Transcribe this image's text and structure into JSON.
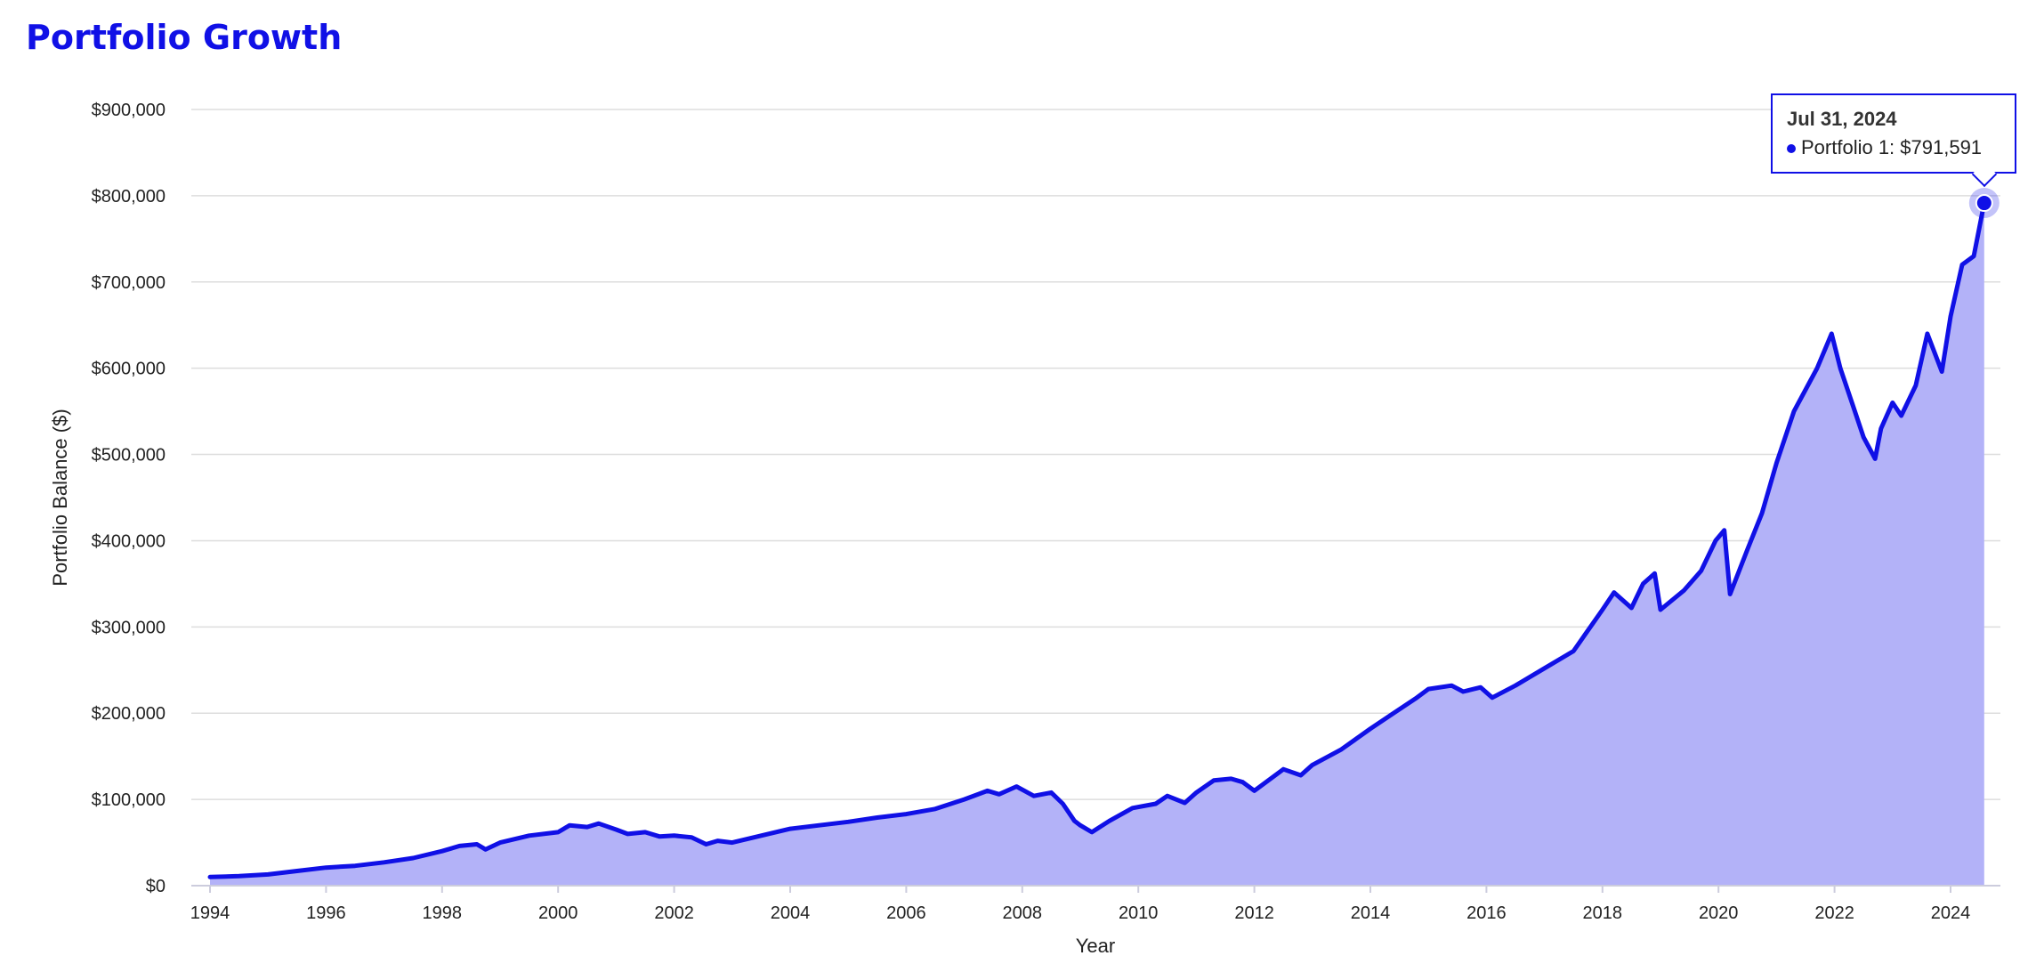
{
  "title": "Portfolio Growth",
  "colors": {
    "accent": "#1010e6",
    "fill": "#b3b2f8",
    "grid": "#dddddd"
  },
  "tooltip": {
    "date": "Jul 31, 2024",
    "series_label": "Portfolio 1: $791,591"
  },
  "chart_data": {
    "type": "area",
    "xlabel": "Year",
    "ylabel": "Portfolio Balance ($)",
    "xlim": [
      1994.0,
      2024.58
    ],
    "ylim": [
      0,
      900000
    ],
    "x_ticks": [
      "1994",
      "1996",
      "1998",
      "2000",
      "2002",
      "2004",
      "2006",
      "2008",
      "2010",
      "2012",
      "2014",
      "2016",
      "2018",
      "2020",
      "2022",
      "2024"
    ],
    "y_ticks": [
      "$0",
      "$100,000",
      "$200,000",
      "$300,000",
      "$400,000",
      "$500,000",
      "$600,000",
      "$700,000",
      "$800,000",
      "$900,000"
    ],
    "grid": true,
    "legend": "none",
    "series": [
      {
        "name": "Portfolio 1",
        "x": [
          1994.0,
          1994.5,
          1995.0,
          1995.5,
          1996.0,
          1996.5,
          1997.0,
          1997.5,
          1998.0,
          1998.3,
          1998.6,
          1998.75,
          1999.0,
          1999.5,
          2000.0,
          2000.2,
          2000.5,
          2000.7,
          2001.0,
          2001.2,
          2001.5,
          2001.75,
          2002.0,
          2002.3,
          2002.55,
          2002.75,
          2003.0,
          2003.5,
          2004.0,
          2004.5,
          2005.0,
          2005.5,
          2006.0,
          2006.5,
          2007.0,
          2007.4,
          2007.6,
          2007.9,
          2008.2,
          2008.5,
          2008.7,
          2008.9,
          2009.0,
          2009.2,
          2009.5,
          2009.9,
          2010.3,
          2010.5,
          2010.8,
          2011.0,
          2011.3,
          2011.6,
          2011.8,
          2012.0,
          2012.5,
          2012.8,
          2013.0,
          2013.5,
          2014.0,
          2014.4,
          2014.8,
          2015.0,
          2015.4,
          2015.6,
          2015.9,
          2016.1,
          2016.5,
          2017.0,
          2017.5,
          2018.0,
          2018.2,
          2018.5,
          2018.7,
          2018.9,
          2019.0,
          2019.4,
          2019.7,
          2019.95,
          2020.1,
          2020.2,
          2020.5,
          2020.75,
          2021.0,
          2021.3,
          2021.7,
          2021.95,
          2022.1,
          2022.3,
          2022.5,
          2022.7,
          2022.8,
          2023.0,
          2023.15,
          2023.4,
          2023.6,
          2023.85,
          2024.0,
          2024.2,
          2024.4,
          2024.58
        ],
        "values": [
          10000,
          11000,
          13000,
          17000,
          21000,
          23000,
          27000,
          32000,
          40000,
          46000,
          48000,
          42000,
          50000,
          58000,
          62000,
          70000,
          68000,
          72000,
          65000,
          60000,
          62000,
          57000,
          58000,
          56000,
          48000,
          52000,
          50000,
          58000,
          66000,
          70000,
          74000,
          79000,
          83000,
          89000,
          100000,
          110000,
          106000,
          115000,
          104000,
          108000,
          95000,
          75000,
          70000,
          62000,
          75000,
          90000,
          95000,
          104000,
          96000,
          108000,
          122000,
          124000,
          120000,
          110000,
          135000,
          128000,
          140000,
          158000,
          182000,
          200000,
          218000,
          228000,
          232000,
          225000,
          230000,
          218000,
          232000,
          252000,
          272000,
          320000,
          340000,
          322000,
          350000,
          362000,
          320000,
          342000,
          365000,
          400000,
          412000,
          338000,
          390000,
          432000,
          490000,
          550000,
          600000,
          640000,
          600000,
          560000,
          520000,
          495000,
          530000,
          560000,
          545000,
          580000,
          640000,
          596000,
          660000,
          720000,
          730000,
          791591
        ]
      }
    ]
  }
}
